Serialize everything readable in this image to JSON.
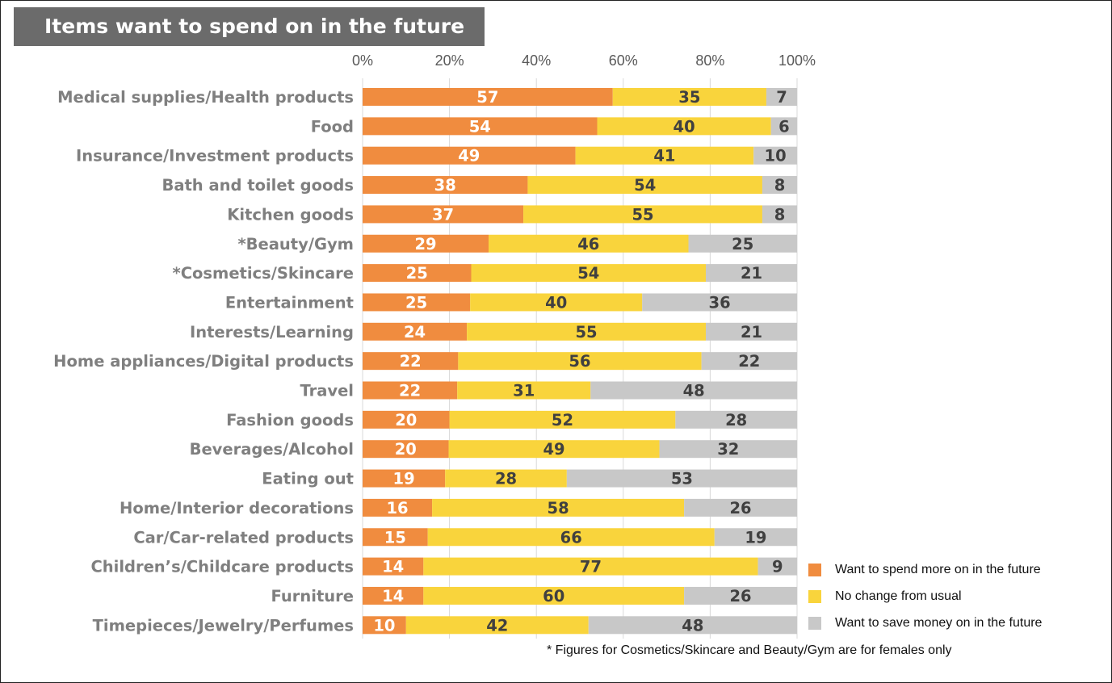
{
  "title": "Items want to spend on in the future",
  "footnote": "* Figures for Cosmetics/Skincare and Beauty/Gym are for females only",
  "chart_data": {
    "type": "bar",
    "orientation": "horizontal",
    "stacked": "percent",
    "categories": [
      "Medical supplies/Health products",
      "Food",
      "Insurance/Investment products",
      "Bath and toilet goods",
      "Kitchen goods",
      "*Beauty/Gym",
      "*Cosmetics/Skincare",
      "Entertainment",
      "Interests/Learning",
      "Home appliances/Digital products",
      "Travel",
      "Fashion goods",
      "Beverages/Alcohol",
      "Eating out",
      "Home/Interior decorations",
      "Car/Car-related products",
      "Children’s/Childcare products",
      "Furniture",
      "Timepieces/Jewelry/Perfumes"
    ],
    "series": [
      {
        "name": "Want to spend more on in the future",
        "color": "#f08c3f",
        "label_color": "#ffffff",
        "values": [
          57,
          54,
          49,
          38,
          37,
          29,
          25,
          25,
          24,
          22,
          22,
          20,
          20,
          19,
          16,
          15,
          14,
          14,
          10
        ]
      },
      {
        "name": "No change from usual",
        "color": "#f9d43c",
        "label_color": "#404040",
        "values": [
          35,
          40,
          41,
          54,
          55,
          46,
          54,
          40,
          55,
          56,
          31,
          52,
          49,
          28,
          58,
          66,
          77,
          60,
          42
        ]
      },
      {
        "name": "Want to save money on in the future",
        "color": "#c8c8c8",
        "label_color": "#404040",
        "values": [
          7,
          6,
          10,
          8,
          8,
          25,
          21,
          36,
          21,
          22,
          48,
          28,
          32,
          53,
          26,
          19,
          9,
          26,
          48
        ]
      }
    ],
    "xlim": [
      0,
      100
    ],
    "xticks": [
      "0%",
      "20%",
      "40%",
      "60%",
      "80%",
      "100%"
    ],
    "xaxis_position": "top",
    "grid": true,
    "legend_position": "bottom-right"
  }
}
